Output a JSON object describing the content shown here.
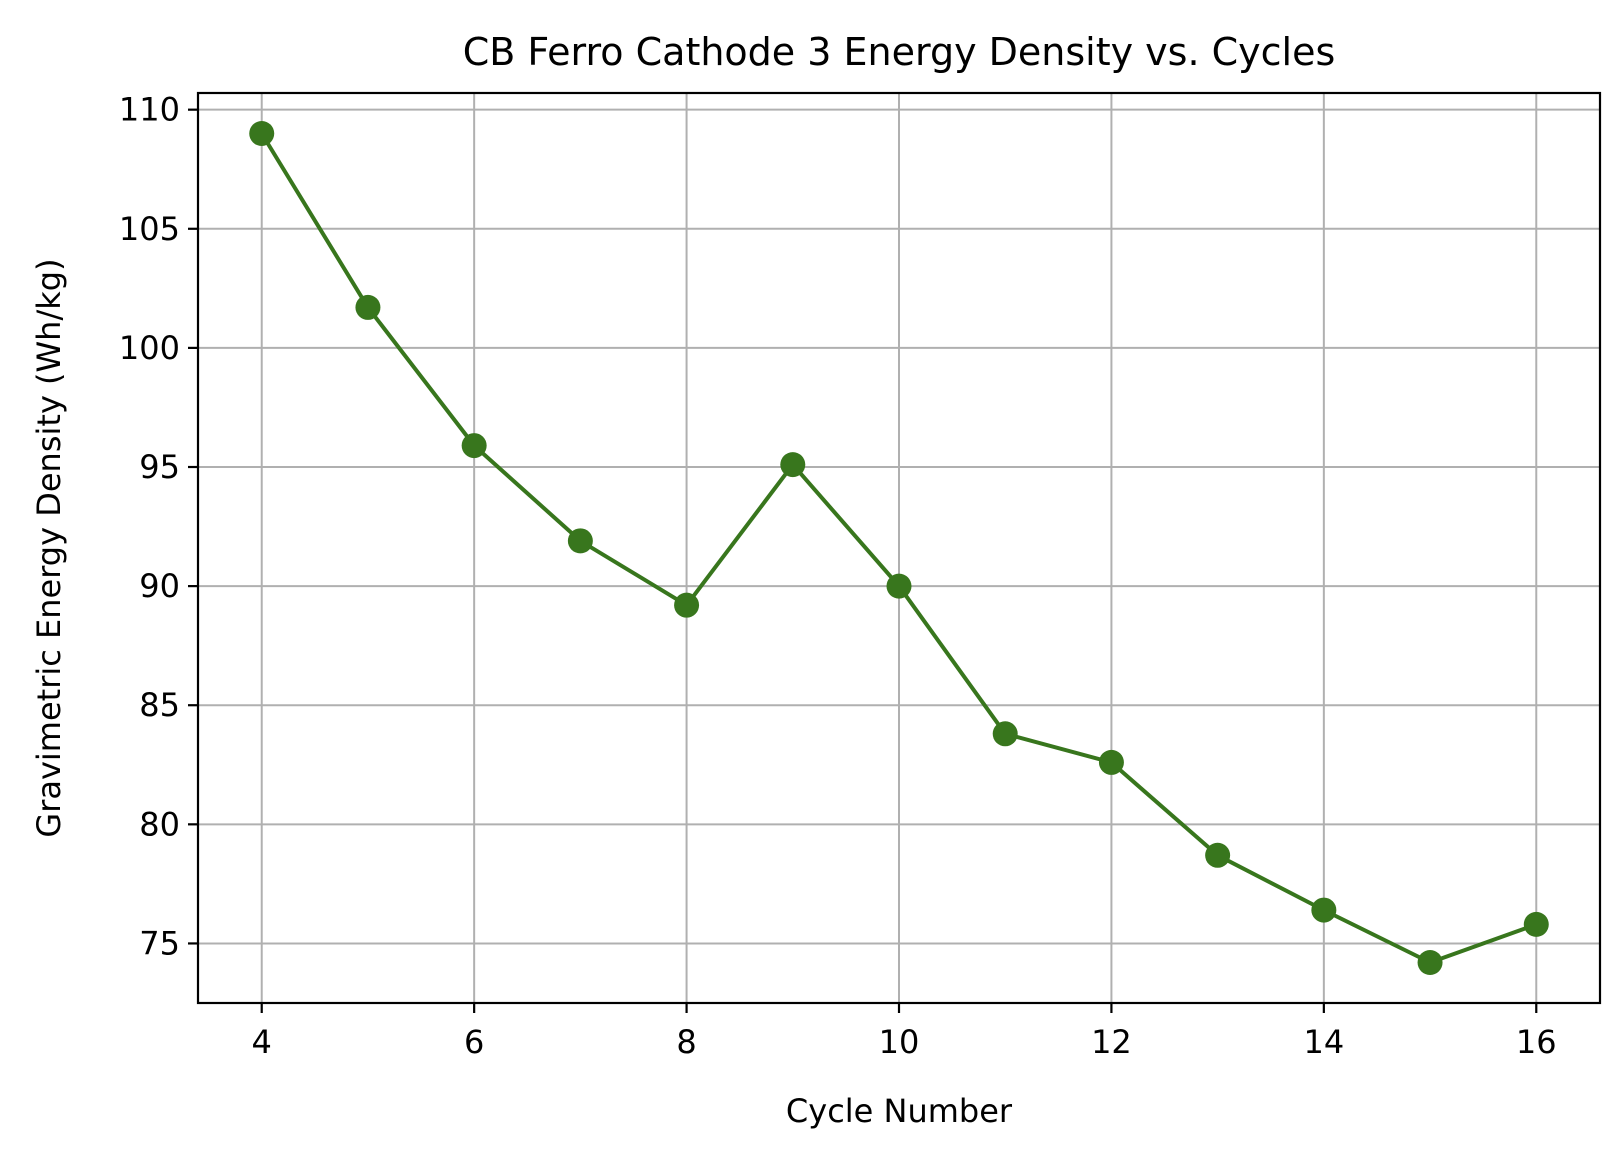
{
  "chart_data": {
    "type": "line",
    "title": "CB Ferro Cathode 3 Energy Density vs. Cycles",
    "xlabel": "Cycle Number",
    "ylabel": "Gravimetric Energy Density (Wh/kg)",
    "x": [
      4,
      5,
      6,
      7,
      8,
      9,
      10,
      11,
      12,
      13,
      14,
      15,
      16
    ],
    "series": [
      {
        "values": [
          109.0,
          101.7,
          95.9,
          91.9,
          89.2,
          95.1,
          90.0,
          83.8,
          82.6,
          78.7,
          76.4,
          74.2,
          75.8
        ],
        "color": "#38761d",
        "marker": "circle"
      }
    ],
    "xlim": [
      3.4,
      16.6
    ],
    "ylim": [
      72.5,
      110.7
    ],
    "xticks": [
      4,
      6,
      8,
      10,
      12,
      14,
      16
    ],
    "yticks": [
      75,
      80,
      85,
      90,
      95,
      100,
      105,
      110
    ],
    "grid": true
  }
}
